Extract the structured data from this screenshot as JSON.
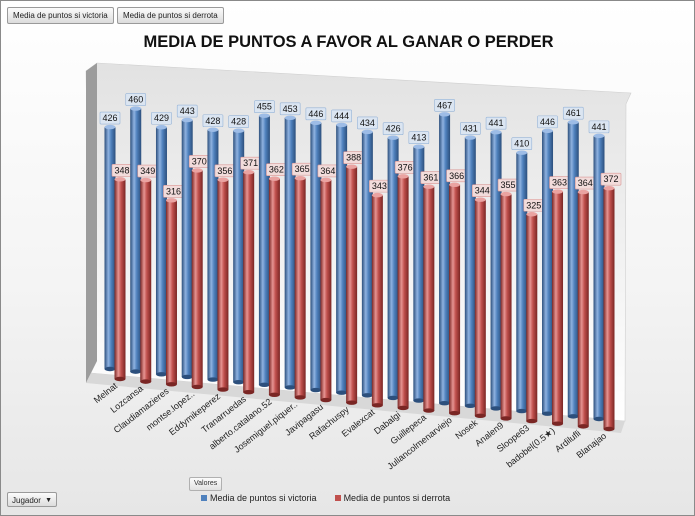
{
  "pivot": {
    "filter_buttons": [
      "Media de puntos si victoria",
      "Media de puntos si derrota"
    ],
    "axis_field": "Jugador",
    "values_field": "Valores"
  },
  "colors": {
    "victory": "#4f81bd",
    "defeat": "#c0504d",
    "victory_label_bg": "#dbe5f1",
    "defeat_label_bg": "#f2dcdb"
  },
  "chart_data": {
    "type": "bar",
    "title": "MEDIA DE PUNTOS A FAVOR AL GANAR O PERDER",
    "xlabel": "",
    "ylabel": "",
    "categories": [
      "Melnat",
      "Lozcansa",
      "Claudiamazieres",
      "montse.lopez..",
      "Eddymikeperez",
      "Tranarruedas",
      "alberto.catalano.52",
      "Josemiguel.piquer..",
      "Javipagasu",
      "Rafachuspy",
      "Evalexcat",
      "Dabalgi",
      "Guillepeca",
      "Juliancolmenarviejo",
      "Nosek",
      "Analen9",
      "Sloope63",
      "badobel(0.5★)",
      "Ardilufli",
      "Blanajao"
    ],
    "series": [
      {
        "name": "Media de puntos si victoria",
        "values": [
          426,
          460,
          429,
          443,
          428,
          428,
          455,
          453,
          446,
          444,
          434,
          426,
          413,
          467,
          431,
          441,
          410,
          446,
          461,
          441
        ]
      },
      {
        "name": "Media de puntos si derrota",
        "values": [
          348,
          349,
          316,
          370,
          356,
          371,
          362,
          365,
          364,
          388,
          343,
          376,
          361,
          366,
          344,
          355,
          325,
          363,
          364,
          372
        ]
      }
    ],
    "legend_position": "bottom",
    "grid": false
  }
}
